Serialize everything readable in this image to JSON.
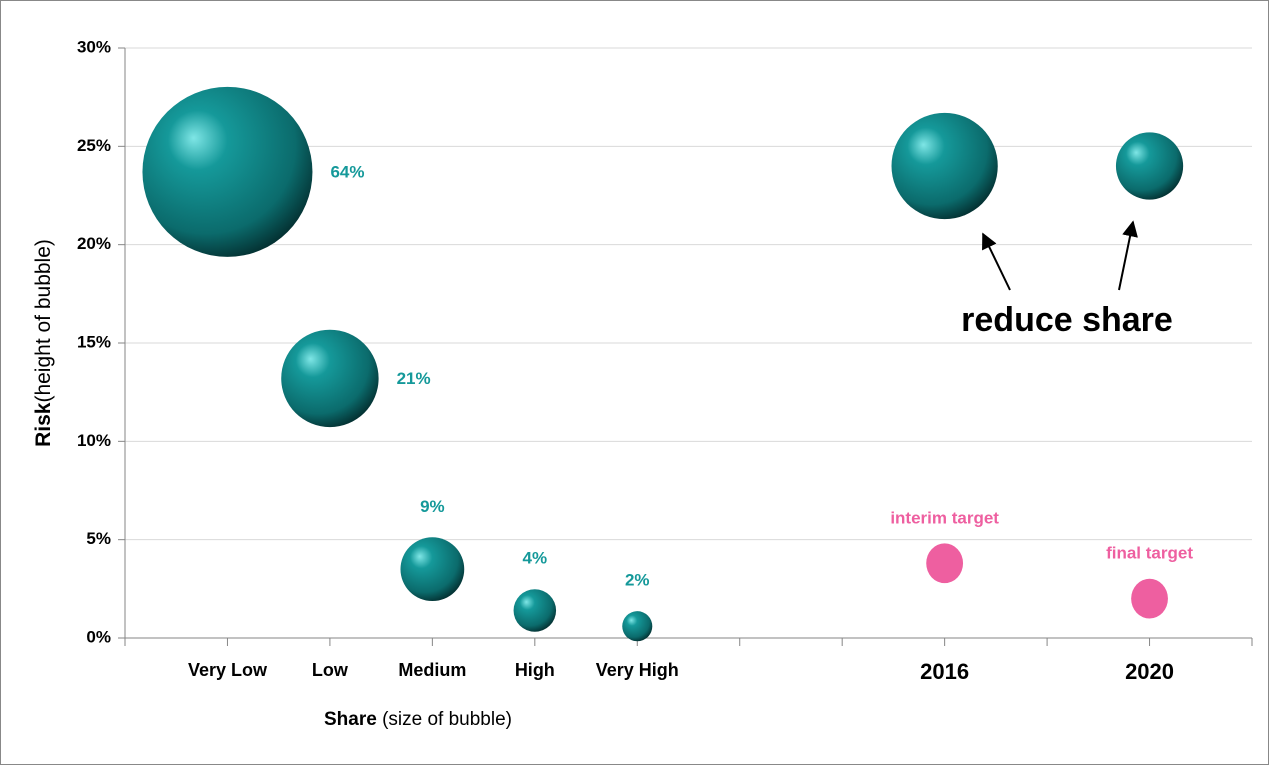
{
  "chart_data": {
    "type": "bubble",
    "ylabel_parts": [
      "Risk",
      "(height of bubble)"
    ],
    "xlabel_parts": [
      "Share",
      " (size of bubble)"
    ],
    "xlim": [
      0,
      11
    ],
    "xticks": [
      {
        "value": 0,
        "label": null
      },
      {
        "value": 1,
        "label": "Very Low"
      },
      {
        "value": 2,
        "label": "Low"
      },
      {
        "value": 3,
        "label": "Medium"
      },
      {
        "value": 4,
        "label": "High"
      },
      {
        "value": 5,
        "label": "Very High"
      },
      {
        "value": 6,
        "label": null
      },
      {
        "value": 7,
        "label": null
      },
      {
        "value": 8,
        "label": "2016"
      },
      {
        "value": 9,
        "label": null
      },
      {
        "value": 10,
        "label": "2020"
      },
      {
        "value": 11,
        "label": null
      }
    ],
    "ylim": [
      0,
      30
    ],
    "yticks": [
      {
        "value": 0,
        "label": "0%"
      },
      {
        "value": 5,
        "label": "5%"
      },
      {
        "value": 10,
        "label": "10%"
      },
      {
        "value": 15,
        "label": "15%"
      },
      {
        "value": 20,
        "label": "20%"
      },
      {
        "value": 25,
        "label": "25%"
      },
      {
        "value": 30,
        "label": "30%"
      }
    ],
    "grid": true,
    "series": [
      {
        "color": "#15999a",
        "style": "sphere",
        "x": [
          1,
          2,
          3,
          4,
          5,
          8,
          10
        ],
        "values": [
          23.7,
          13.2,
          3.5,
          1.4,
          0.6,
          24,
          24
        ],
        "sizes": [
          64,
          21,
          9,
          4,
          2,
          25,
          10
        ],
        "value_labels": [
          "64%",
          "21%",
          "9%",
          "4%",
          "2%",
          null,
          null
        ]
      },
      {
        "color": "#ee5fa0",
        "style": "flat",
        "x": [
          8,
          10
        ],
        "values": [
          3.8,
          2
        ],
        "sizes": [
          3,
          3
        ],
        "labels": [
          "interim target",
          "final target"
        ]
      }
    ],
    "annotation": "reduce share"
  }
}
